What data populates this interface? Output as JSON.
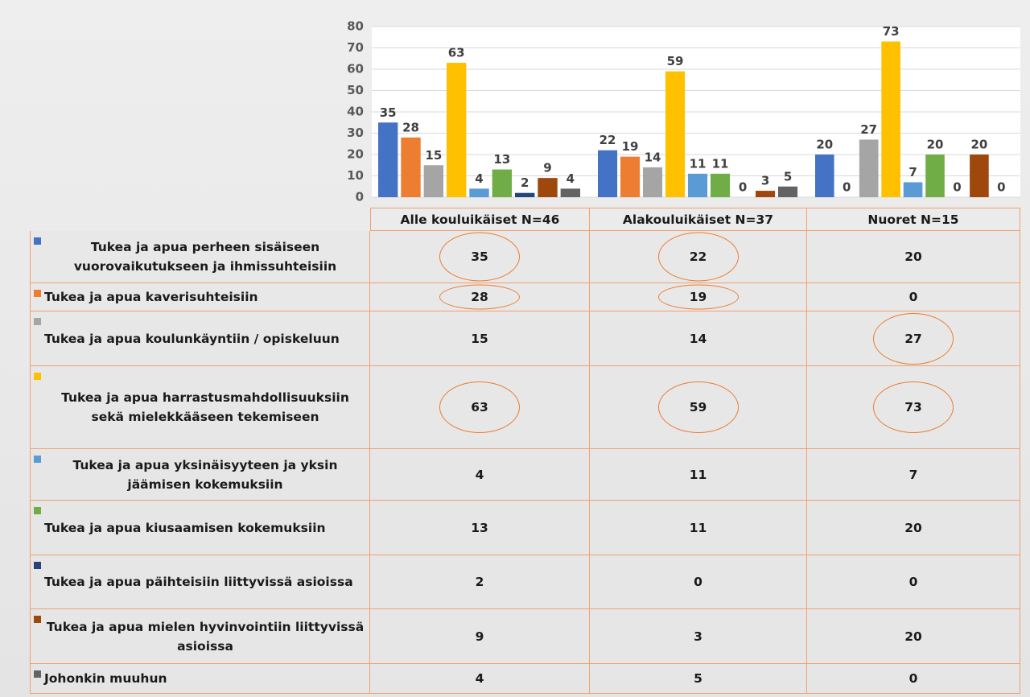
{
  "chart_data": {
    "type": "bar",
    "categories": [
      "Alle kouluikäiset N=46",
      "Alakouluikäiset N=37",
      "Nuoret N=15"
    ],
    "series": [
      {
        "name": "Tukea ja apua perheen sisäiseen vuorovaikutukseen ja ihmissuhteisiin",
        "color": "#4472c4",
        "values": [
          35,
          22,
          20
        ],
        "circled": [
          true,
          true,
          false
        ]
      },
      {
        "name": "Tukea ja apua kaverisuhteisiin",
        "color": "#ed7d31",
        "values": [
          28,
          19,
          0
        ],
        "circled": [
          true,
          true,
          false
        ]
      },
      {
        "name": "Tukea ja apua koulunkäyntiin / opiskeluun",
        "color": "#a5a5a5",
        "values": [
          15,
          14,
          27
        ],
        "circled": [
          false,
          false,
          true
        ]
      },
      {
        "name": "Tukea ja apua harrastusmahdollisuuksiin sekä mielekkääseen tekemiseen",
        "color": "#ffc000",
        "values": [
          63,
          59,
          73
        ],
        "circled": [
          true,
          true,
          true
        ]
      },
      {
        "name": "Tukea ja apua yksinäisyyteen ja yksin jäämisen kokemuksiin",
        "color": "#5b9bd5",
        "values": [
          4,
          11,
          7
        ],
        "circled": [
          false,
          false,
          false
        ]
      },
      {
        "name": "Tukea ja apua kiusaamisen kokemuksiin",
        "color": "#70ad47",
        "values": [
          13,
          11,
          20
        ],
        "circled": [
          false,
          false,
          false
        ]
      },
      {
        "name": "Tukea ja apua päihteisiin liittyvissä asioissa",
        "color": "#264478",
        "values": [
          2,
          0,
          0
        ],
        "circled": [
          false,
          false,
          false
        ]
      },
      {
        "name": "Tukea ja apua mielen hyvinvointiin liittyvissä asioissa",
        "color": "#9e480e",
        "values": [
          9,
          3,
          20
        ],
        "circled": [
          false,
          false,
          false
        ]
      },
      {
        "name": "Johonkin muuhun",
        "color": "#636363",
        "values": [
          4,
          5,
          0
        ],
        "circled": [
          false,
          false,
          false
        ]
      }
    ],
    "ylim": [
      0,
      80
    ],
    "yticks": [
      0,
      10,
      20,
      30,
      40,
      50,
      60,
      70,
      80
    ],
    "grid": true
  }
}
